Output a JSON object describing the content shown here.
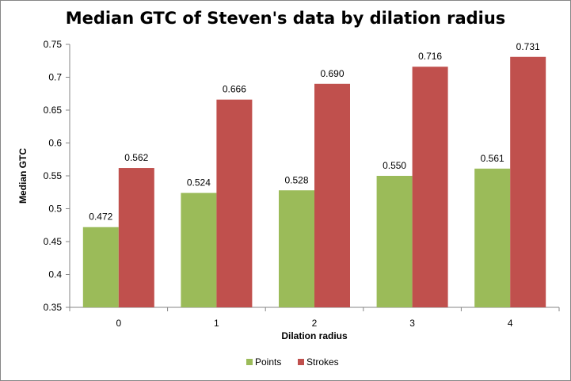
{
  "chart_data": {
    "type": "bar",
    "title": "Median GTC of Steven's data by dilation radius",
    "xlabel": "Dilation radius",
    "ylabel": "Median GTC",
    "categories": [
      "0",
      "1",
      "2",
      "3",
      "4"
    ],
    "series": [
      {
        "name": "Points",
        "color": "#9BBB59",
        "values": [
          0.472,
          0.524,
          0.528,
          0.55,
          0.561
        ],
        "labels": [
          "0.472",
          "0.524",
          "0.528",
          "0.550",
          "0.561"
        ]
      },
      {
        "name": "Strokes",
        "color": "#C0504D",
        "values": [
          0.562,
          0.666,
          0.69,
          0.716,
          0.731
        ],
        "labels": [
          "0.562",
          "0.666",
          "0.690",
          "0.716",
          "0.731"
        ]
      }
    ],
    "ylim": [
      0.35,
      0.75
    ],
    "yticks": [
      "0.35",
      "0.4",
      "0.45",
      "0.5",
      "0.55",
      "0.6",
      "0.65",
      "0.7",
      "0.75"
    ],
    "ytick_step": 0.05,
    "grid": false,
    "legend_position": "bottom"
  }
}
